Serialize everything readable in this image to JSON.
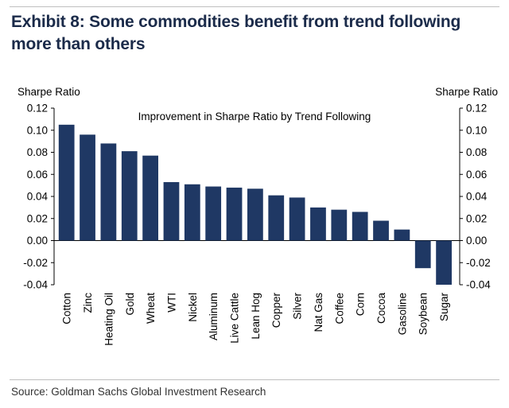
{
  "page": {
    "title": "Exhibit 8: Some commodities benefit from trend following more than others",
    "source": "Source: Goldman Sachs Global Investment Research"
  },
  "chart_data": {
    "type": "bar",
    "title": "Improvement in Sharpe Ratio by Trend Following",
    "ylabel_left": "Sharpe Ratio",
    "ylabel_right": "Sharpe Ratio",
    "ylim": [
      -0.04,
      0.12
    ],
    "yticks": [
      "0.12",
      "0.10",
      "0.08",
      "0.06",
      "0.04",
      "0.02",
      "0.00",
      "-0.02",
      "-0.04"
    ],
    "categories": [
      "Cotton",
      "Zinc",
      "Heating Oil",
      "Gold",
      "Wheat",
      "WTI",
      "Nickel",
      "Aluminum",
      "Live Cattle",
      "Lean Hog",
      "Copper",
      "Silver",
      "Nat Gas",
      "Coffee",
      "Corn",
      "Cocoa",
      "Gasoline",
      "Soybean",
      "Sugar"
    ],
    "values": [
      0.105,
      0.096,
      0.088,
      0.081,
      0.077,
      0.053,
      0.051,
      0.049,
      0.048,
      0.047,
      0.041,
      0.039,
      0.03,
      0.028,
      0.026,
      0.018,
      0.01,
      -0.025,
      -0.045
    ],
    "bar_color": "#1f3864",
    "grid": false,
    "legend": "none"
  }
}
